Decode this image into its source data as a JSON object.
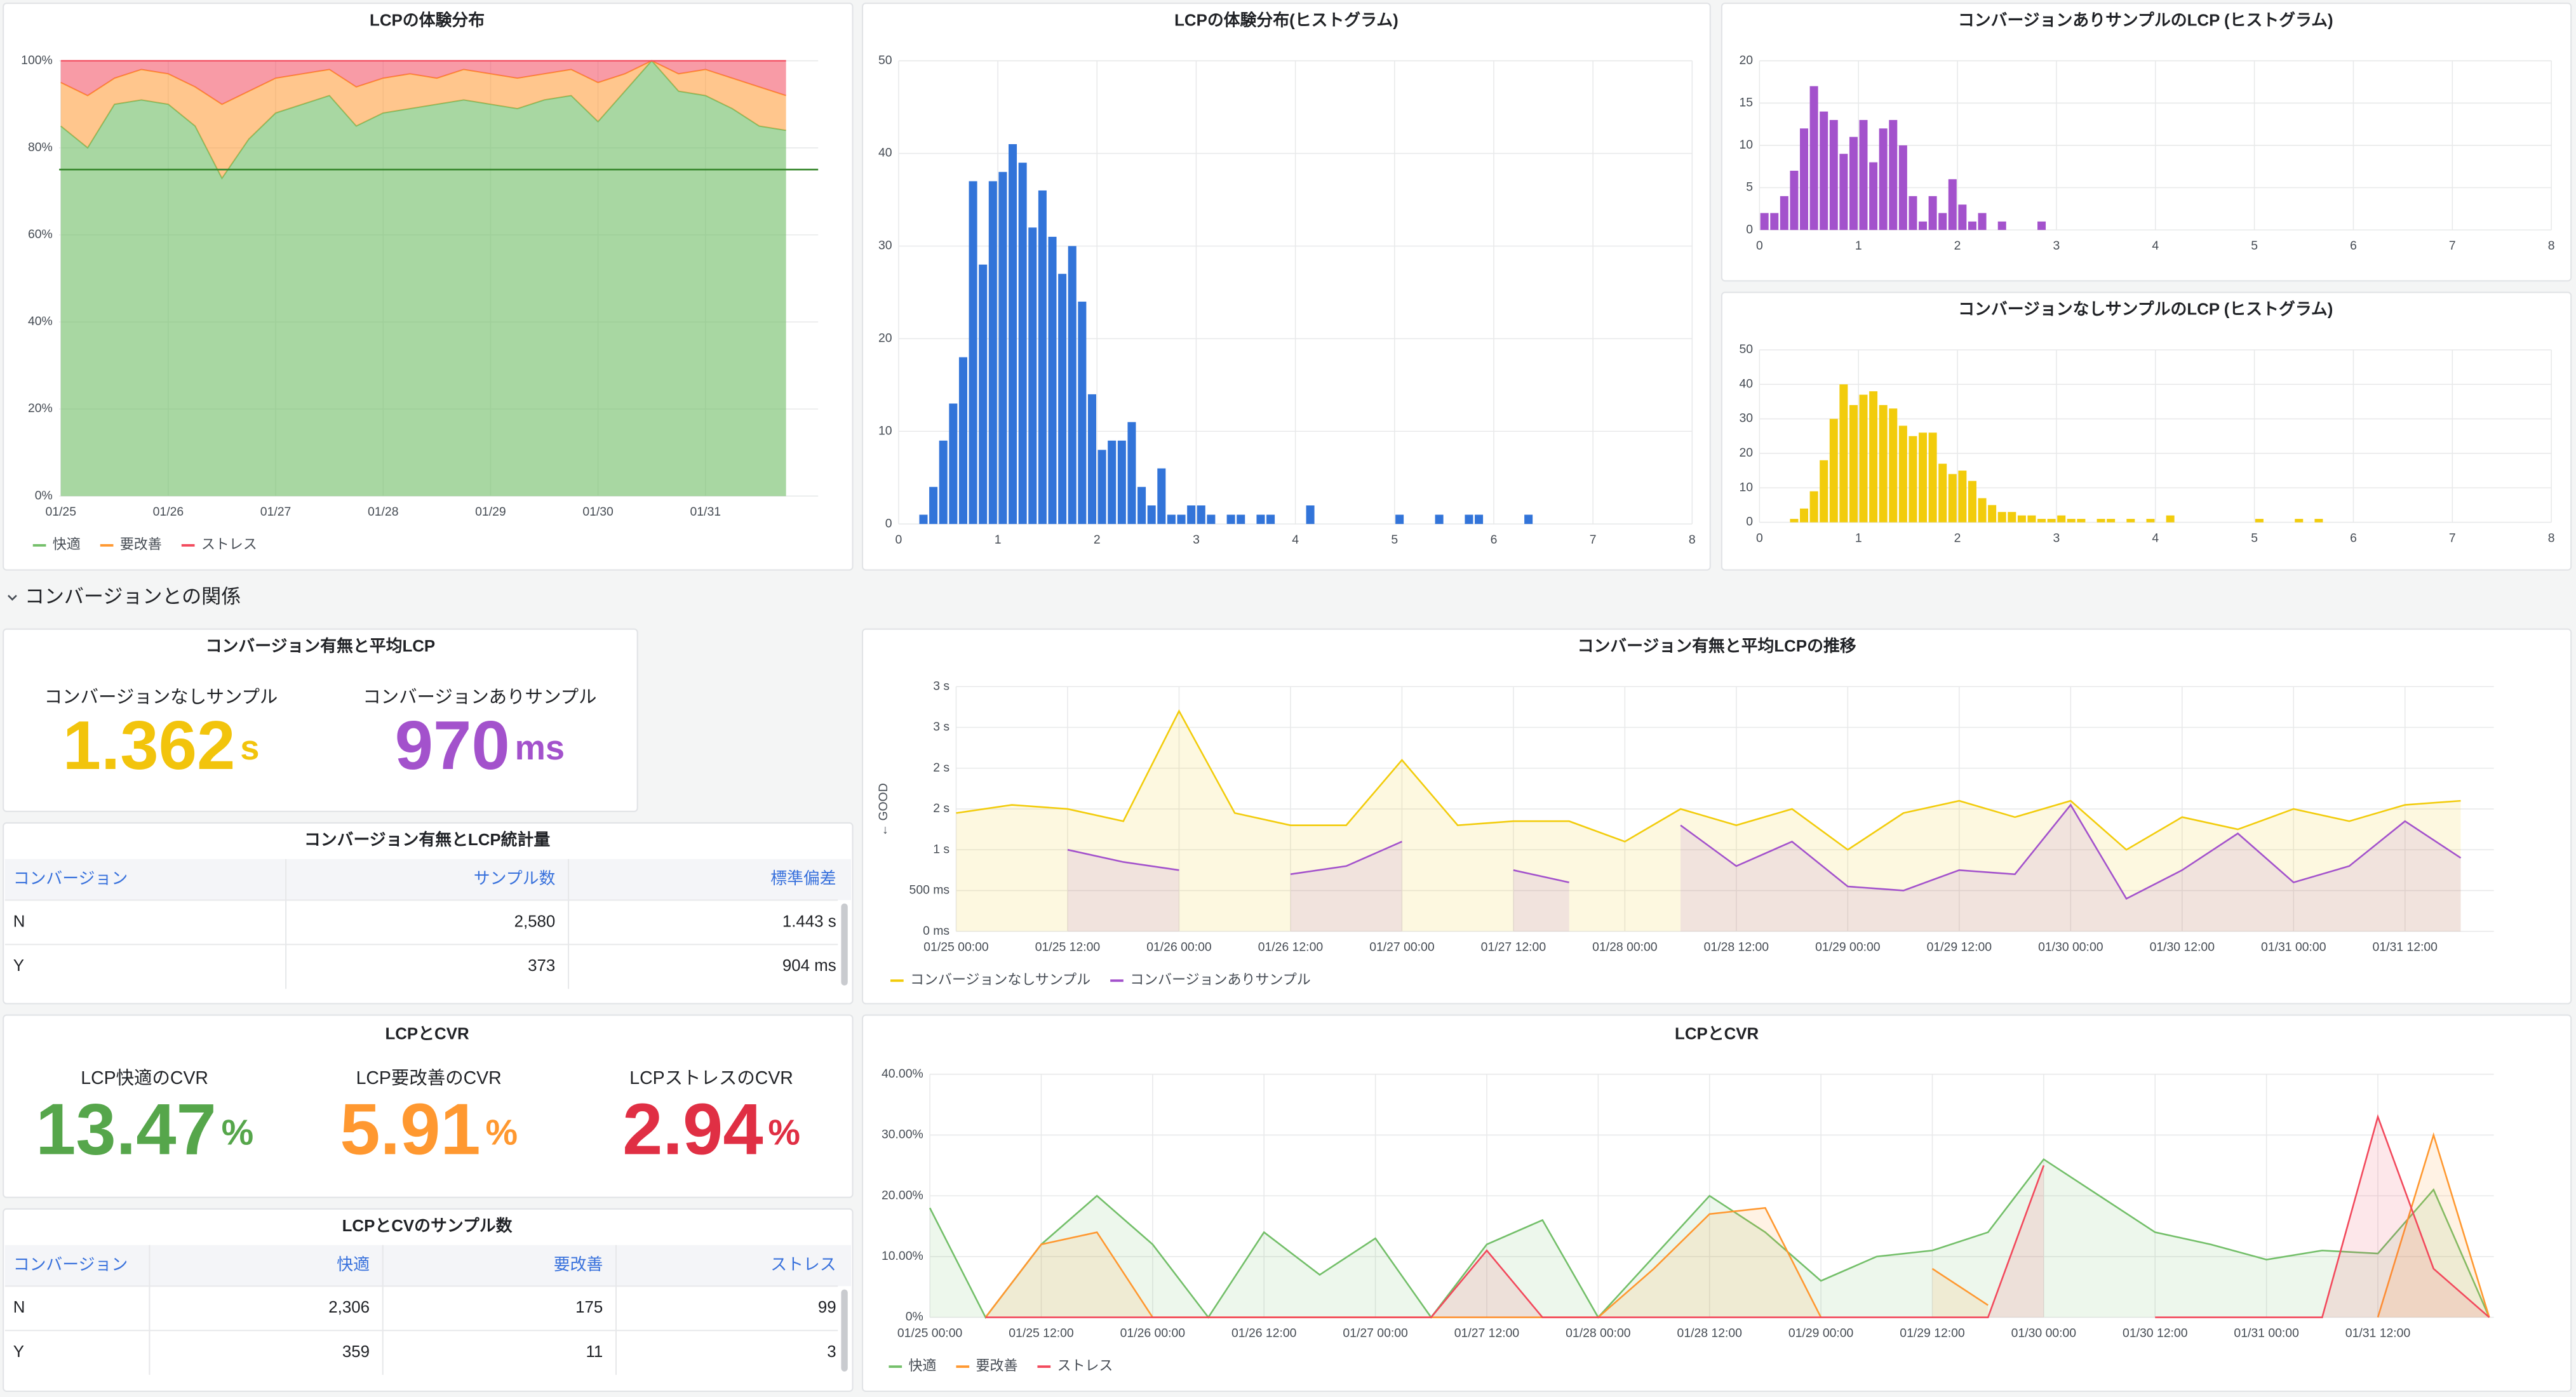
{
  "chart_data": [
    {
      "type": "area",
      "title": "LCPの体験分布",
      "categories": [
        "01/25",
        null,
        null,
        null,
        "01/26",
        null,
        null,
        null,
        "01/27",
        null,
        null,
        null,
        "01/28",
        null,
        null,
        null,
        "01/29",
        null,
        null,
        null,
        "01/30",
        null,
        null,
        null,
        "01/31",
        null,
        null,
        null
      ],
      "series": [
        {
          "name": "快適",
          "color": "#73bf69",
          "values": [
            85,
            80,
            90,
            91,
            90,
            85,
            73,
            82,
            88,
            90,
            92,
            85,
            88,
            89,
            90,
            91,
            90,
            89,
            91,
            92,
            86,
            93,
            100,
            93,
            92,
            89,
            85,
            84
          ]
        },
        {
          "name": "要改善",
          "color": "#ff9830",
          "values": [
            10,
            12,
            6,
            7,
            7,
            9,
            17,
            11,
            8,
            7,
            6,
            9,
            8,
            8,
            6,
            7,
            7,
            7,
            6,
            6,
            9,
            4,
            0,
            4,
            6,
            7,
            9,
            8
          ]
        },
        {
          "name": "ストレス",
          "color": "#f2495c",
          "values": [
            5,
            8,
            4,
            2,
            3,
            6,
            10,
            7,
            4,
            3,
            2,
            6,
            4,
            3,
            4,
            2,
            3,
            4,
            3,
            2,
            5,
            3,
            0,
            3,
            2,
            4,
            6,
            8
          ]
        }
      ],
      "ylim": [
        0,
        100
      ],
      "yticks": [
        {
          "value": 0,
          "label": "0%"
        },
        {
          "value": 20,
          "label": "20%"
        },
        {
          "value": 40,
          "label": "40%"
        },
        {
          "value": 60,
          "label": "60%"
        },
        {
          "value": 80,
          "label": "80%"
        },
        {
          "value": 100,
          "label": "100%"
        }
      ],
      "threshold": 75,
      "grid": true
    },
    {
      "type": "histogram",
      "title": "LCPの体験分布(ヒストグラム)",
      "color": "#3274d9",
      "bins": [
        0.2,
        0.3,
        0.4,
        0.5,
        0.6,
        0.7,
        0.8,
        0.9,
        1.0,
        1.1,
        1.2,
        1.3,
        1.4,
        1.5,
        1.6,
        1.7,
        1.8,
        1.9,
        2.0,
        2.1,
        2.2,
        2.3,
        2.4,
        2.5,
        2.6,
        2.7,
        2.8,
        2.9,
        3.0,
        3.1,
        3.2,
        3.3,
        3.4,
        3.5,
        3.6,
        3.7,
        3.8,
        3.9,
        4.0,
        4.1,
        4.2,
        4.3,
        4.4,
        4.5,
        4.6,
        4.7,
        4.8,
        4.9,
        5.0,
        5.1,
        5.2,
        5.3,
        5.4,
        5.5,
        5.6,
        5.7,
        5.8,
        5.9,
        6.0,
        6.1,
        6.2,
        6.3,
        6.4
      ],
      "values": [
        1,
        4,
        9,
        13,
        18,
        37,
        28,
        37,
        38,
        41,
        39,
        32,
        36,
        31,
        27,
        30,
        24,
        14,
        8,
        9,
        9,
        11,
        4,
        2,
        6,
        1,
        1,
        2,
        2,
        1,
        0,
        1,
        1,
        0,
        1,
        1,
        0,
        0,
        0,
        2,
        0,
        0,
        0,
        0,
        0,
        0,
        0,
        0,
        1,
        0,
        0,
        0,
        1,
        0,
        0,
        1,
        1,
        0,
        0,
        0,
        0,
        1
      ],
      "xlim": [
        0,
        8
      ],
      "xticks": [
        0,
        1,
        2,
        3,
        4,
        5,
        6,
        7,
        8
      ],
      "ylim": [
        0,
        50
      ],
      "yticks": [
        0,
        10,
        20,
        30,
        40,
        50
      ],
      "grid": true
    },
    {
      "type": "histogram",
      "title": "コンバージョンありサンプルのLCP (ヒストグラム)",
      "color": "#a352cc",
      "bins": [
        0,
        0.1,
        0.2,
        0.3,
        0.4,
        0.5,
        0.6,
        0.7,
        0.8,
        0.9,
        1.0,
        1.1,
        1.2,
        1.3,
        1.4,
        1.5,
        1.6,
        1.7,
        1.8,
        1.9,
        2.0,
        2.1,
        2.2,
        2.3,
        2.4,
        2.5,
        2.6,
        2.7,
        2.8,
        2.9
      ],
      "values": [
        2,
        2,
        4,
        7,
        12,
        17,
        14,
        13,
        9,
        11,
        13,
        8,
        12,
        13,
        10,
        4,
        1,
        4,
        2,
        6,
        3,
        1,
        2,
        0,
        1,
        0,
        0,
        0,
        1
      ],
      "xlim": [
        0,
        8
      ],
      "xticks": [
        0,
        1,
        2,
        3,
        4,
        5,
        6,
        7,
        8
      ],
      "ylim": [
        0,
        20
      ],
      "yticks": [
        0,
        5,
        10,
        15,
        20
      ],
      "grid": true
    },
    {
      "type": "histogram",
      "title": "コンバージョンなしサンプルのLCP (ヒストグラム)",
      "color": "#f2cc0c",
      "bins": [
        0.3,
        0.4,
        0.5,
        0.6,
        0.7,
        0.8,
        0.9,
        1.0,
        1.1,
        1.2,
        1.3,
        1.4,
        1.5,
        1.6,
        1.7,
        1.8,
        1.9,
        2.0,
        2.1,
        2.2,
        2.3,
        2.4,
        2.5,
        2.6,
        2.7,
        2.8,
        2.9,
        3.0,
        3.1,
        3.2,
        3.3,
        3.4,
        3.5,
        3.6,
        3.7,
        3.8,
        3.9,
        4.0,
        4.1,
        4.2,
        4.3,
        4.4,
        4.5,
        4.6,
        4.7,
        4.8,
        4.9,
        5.0,
        5.1,
        5.2,
        5.3,
        5.4,
        5.5,
        5.6,
        5.7
      ],
      "values": [
        1,
        4,
        9,
        18,
        30,
        40,
        34,
        37,
        38,
        34,
        33,
        28,
        25,
        26,
        26,
        17,
        14,
        15,
        12,
        7,
        5,
        3,
        3,
        2,
        2,
        1,
        1,
        2,
        1,
        1,
        0,
        1,
        1,
        0,
        1,
        0,
        1,
        0,
        2,
        0,
        0,
        0,
        0,
        0,
        0,
        0,
        0,
        1,
        0,
        0,
        0,
        1,
        0,
        1
      ],
      "xlim": [
        0,
        8
      ],
      "xticks": [
        0,
        1,
        2,
        3,
        4,
        5,
        6,
        7,
        8
      ],
      "ylim": [
        0,
        50
      ],
      "yticks": [
        0,
        10,
        20,
        30,
        40,
        50
      ],
      "grid": true
    },
    {
      "type": "line",
      "title": "コンバージョン有無と平均LCPの推移",
      "ylabel": "← GOOD",
      "categories": [
        "01/25 00:00",
        null,
        "01/25 12:00",
        null,
        "01/26 00:00",
        null,
        "01/26 12:00",
        null,
        "01/27 00:00",
        null,
        "01/27 12:00",
        null,
        "01/28 00:00",
        null,
        "01/28 12:00",
        null,
        "01/29 00:00",
        null,
        "01/29 12:00",
        null,
        "01/30 00:00",
        null,
        "01/30 12:00",
        null,
        "01/31 00:00",
        null,
        "01/31 12:00",
        null
      ],
      "series": [
        {
          "name": "コンバージョンなしサンプル",
          "color": "#f2cc0c",
          "values": [
            1.45,
            1.55,
            1.5,
            1.35,
            2.7,
            1.45,
            1.3,
            1.3,
            2.1,
            1.3,
            1.35,
            1.35,
            1.1,
            1.5,
            1.3,
            1.5,
            1,
            1.45,
            1.6,
            1.4,
            1.6,
            1,
            1.4,
            1.25,
            1.5,
            1.35,
            1.55,
            1.6
          ]
        },
        {
          "name": "コンバージョンありサンプル",
          "color": "#a352cc",
          "values": [
            null,
            null,
            1,
            0.85,
            0.75,
            null,
            0.7,
            0.8,
            1.1,
            null,
            0.75,
            0.6,
            null,
            1.3,
            0.8,
            1.1,
            0.55,
            0.5,
            0.75,
            0.7,
            1.55,
            0.4,
            0.75,
            1.2,
            0.6,
            0.8,
            1.35,
            0.9
          ]
        }
      ],
      "ylim": [
        0,
        3
      ],
      "yticks": [
        {
          "value": 0,
          "label": "0 ms"
        },
        {
          "value": 0.5,
          "label": "500 ms"
        },
        {
          "value": 1,
          "label": "1 s"
        },
        {
          "value": 1.5,
          "label": "2 s"
        },
        {
          "value": 2,
          "label": "2 s"
        },
        {
          "value": 2.5,
          "label": "3 s"
        },
        {
          "value": 3,
          "label": "3 s"
        }
      ],
      "grid": true
    },
    {
      "type": "line",
      "title": "LCPとCVR",
      "categories": [
        "01/25 00:00",
        null,
        "01/25 12:00",
        null,
        "01/26 00:00",
        null,
        "01/26 12:00",
        null,
        "01/27 00:00",
        null,
        "01/27 12:00",
        null,
        "01/28 00:00",
        null,
        "01/28 12:00",
        null,
        "01/29 00:00",
        null,
        "01/29 12:00",
        null,
        "01/30 00:00",
        null,
        "01/30 12:00",
        null,
        "01/31 00:00",
        null,
        "01/31 12:00",
        null,
        null
      ],
      "series": [
        {
          "name": "快適",
          "color": "#73bf69",
          "values": [
            18,
            0,
            12,
            20,
            12,
            0,
            14,
            7,
            13,
            0,
            12,
            16,
            0,
            10,
            20,
            14,
            6,
            10,
            11,
            14,
            26,
            20,
            14,
            12,
            9.5,
            11,
            10.5,
            21,
            0
          ]
        },
        {
          "name": "要改善",
          "color": "#ff9830",
          "values": [
            null,
            0,
            12,
            14,
            0,
            0,
            0,
            0,
            0,
            0,
            0,
            0,
            0,
            8,
            17,
            18,
            0,
            null,
            8,
            2,
            null,
            null,
            null,
            null,
            null,
            null,
            0,
            30,
            0
          ]
        },
        {
          "name": "ストレス",
          "color": "#f2495c",
          "values": [
            null,
            0,
            0,
            0,
            0,
            0,
            0,
            0,
            0,
            0,
            11,
            0,
            0,
            0,
            0,
            0,
            0,
            0,
            0,
            0,
            25,
            null,
            0,
            0,
            0,
            0,
            33,
            8,
            0
          ]
        }
      ],
      "ylim": [
        0,
        40
      ],
      "yticks": [
        {
          "value": 0,
          "label": "0%"
        },
        {
          "value": 10,
          "label": "10.00%"
        },
        {
          "value": 20,
          "label": "20.00%"
        },
        {
          "value": 30,
          "label": "30.00%"
        },
        {
          "value": 40,
          "label": "40.00%"
        }
      ],
      "grid": true
    }
  ],
  "section_title": "コンバージョンとの関係",
  "stat_panels": [
    {
      "title": "コンバージョン有無と平均LCP",
      "items": [
        {
          "label": "コンバージョンなしサンプル",
          "value": 1.362,
          "unit": "s",
          "color": "#f2c40c"
        },
        {
          "label": "コンバージョンありサンプル",
          "value": 970,
          "unit": "ms",
          "color": "#a352cc"
        }
      ]
    },
    {
      "title": "LCPとCVR",
      "items": [
        {
          "label": "LCP快適のCVR",
          "value": 13.47,
          "unit": "%",
          "color": "#56a64b"
        },
        {
          "label": "LCP要改善のCVR",
          "value": 5.91,
          "unit": "%",
          "color": "#ff9830"
        },
        {
          "label": "LCPストレスのCVR",
          "value": 2.94,
          "unit": "%",
          "color": "#e02f44"
        }
      ]
    }
  ],
  "tables": [
    {
      "title": "コンバージョン有無とLCP統計量",
      "headers": [
        "コンバージョン",
        "サンプル数",
        "標準偏差"
      ],
      "rows": [
        [
          "N",
          "2,580",
          "1.443 s"
        ],
        [
          "Y",
          "373",
          "904 ms"
        ]
      ]
    },
    {
      "title": "LCPとCVのサンプル数",
      "headers": [
        "コンバージョン",
        "快適",
        "要改善",
        "ストレス"
      ],
      "rows": [
        [
          "N",
          "2,306",
          "175",
          "99"
        ],
        [
          "Y",
          "359",
          "11",
          "3"
        ]
      ]
    }
  ]
}
